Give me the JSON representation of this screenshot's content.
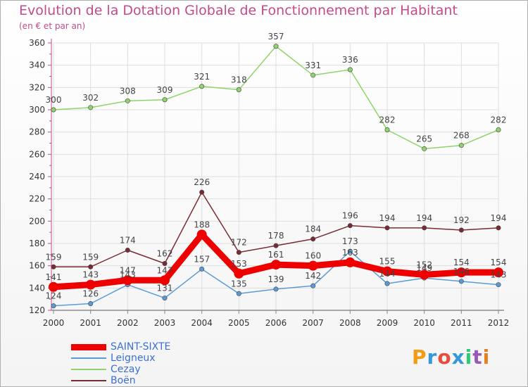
{
  "title": "Evolution de la Dotation Globale de Fonctionnement par Habitant",
  "subtitle": "(en € et par an)",
  "logo": {
    "text": "Proxiti",
    "colors": [
      "#f39c12",
      "#3498db",
      "#e74c3c",
      "#3498db",
      "#2ecc71",
      "#9b59b6",
      "#e67e22"
    ]
  },
  "chart_data": {
    "type": "line",
    "title": "Evolution de la Dotation Globale de Fonctionnement par Habitant",
    "subtitle": "(en € et par an)",
    "x": [
      2000,
      2001,
      2002,
      2003,
      2004,
      2005,
      2006,
      2007,
      2008,
      2009,
      2010,
      2011,
      2012
    ],
    "x_tick_labels": [
      "2000",
      "2001",
      "2002",
      "2003",
      "2004",
      "2005",
      "2006",
      "2007",
      "2008",
      "2009",
      "2010",
      "2011",
      "2012"
    ],
    "ylim": [
      120,
      360
    ],
    "y_ticks": [
      120,
      140,
      160,
      180,
      200,
      220,
      240,
      260,
      280,
      300,
      320,
      340,
      360
    ],
    "y_tick_labels": [
      "120",
      "140",
      "160",
      "180",
      "200",
      "220",
      "240",
      "260",
      "280",
      "300",
      "320",
      "340",
      "360"
    ],
    "grid": true,
    "legend_position": "bottom-left",
    "series": [
      {
        "name": "SAINT-SIXTE",
        "color": "#ee0000",
        "values": [
          141,
          143,
          147,
          147,
          188,
          153,
          161,
          160,
          163,
          155,
          152,
          154,
          154
        ],
        "labels": [
          "141",
          "143",
          "147",
          "147",
          "188",
          "153",
          "161",
          "160",
          "163",
          "155",
          "152",
          "154",
          "154"
        ]
      },
      {
        "name": "Leigneux",
        "color": "#5b9bd5",
        "values": [
          124,
          126,
          143,
          131,
          157,
          135,
          139,
          142,
          173,
          144,
          149,
          146,
          143
        ],
        "labels": [
          "124",
          "126",
          "143",
          "131",
          "157",
          "135",
          "139",
          "142",
          "173",
          "144",
          "149",
          "146",
          "143"
        ]
      },
      {
        "name": "Cezay",
        "color": "#8fd46a",
        "values": [
          300,
          302,
          308,
          309,
          321,
          318,
          357,
          331,
          336,
          282,
          265,
          268,
          282
        ],
        "labels": [
          "300",
          "302",
          "308",
          "309",
          "321",
          "318",
          "357",
          "331",
          "336",
          "282",
          "265",
          "268",
          "282"
        ]
      },
      {
        "name": "Boën",
        "color": "#7a2a32",
        "values": [
          159,
          159,
          174,
          162,
          226,
          172,
          178,
          184,
          196,
          194,
          194,
          192,
          194
        ],
        "labels": [
          "159",
          "159",
          "174",
          "162",
          "226",
          "172",
          "178",
          "184",
          "196",
          "194",
          "194",
          "192",
          "194"
        ]
      }
    ]
  }
}
